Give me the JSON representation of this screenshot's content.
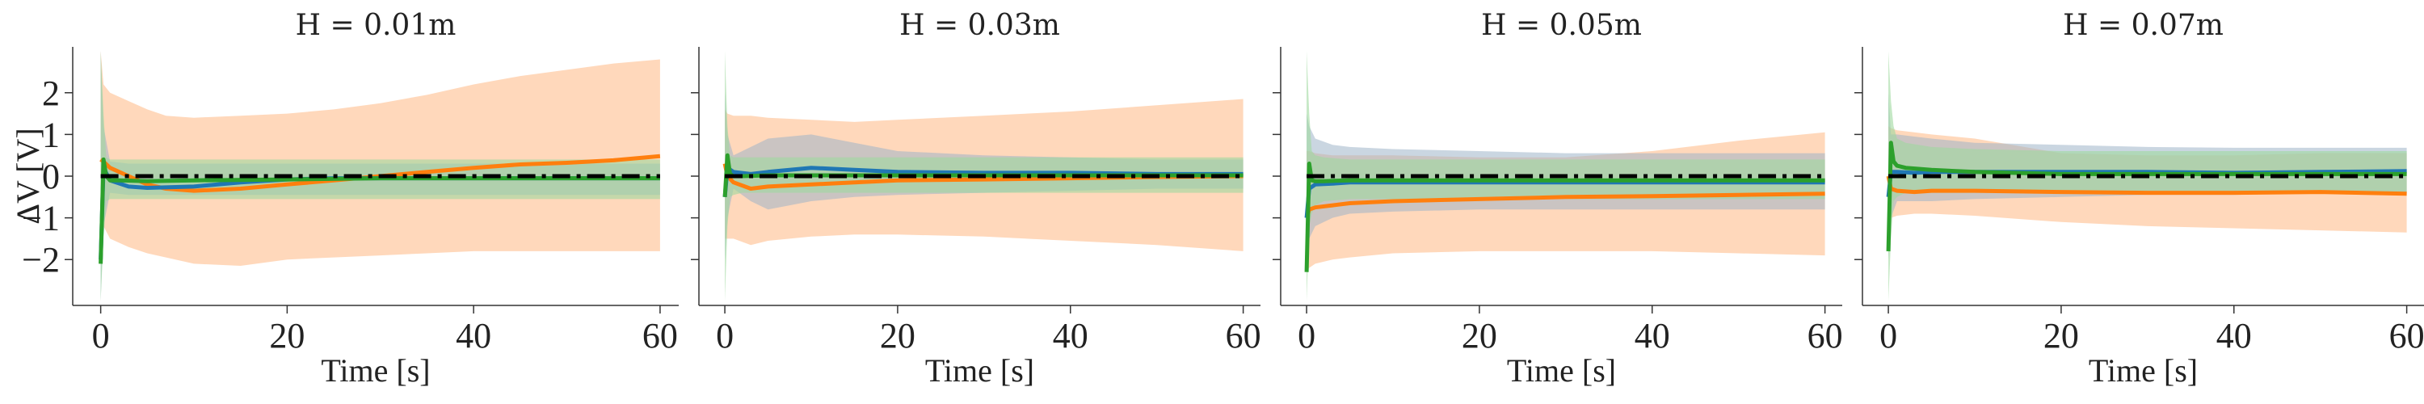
{
  "figure": {
    "y_axis_label": "ΔV [V]",
    "x_axis_label": "Time [s]"
  },
  "colors": {
    "blue": "#1f77b4",
    "orange": "#ff7f0e",
    "green": "#2ca02c",
    "reference": "#000000",
    "orange_band": "#ffcba4",
    "blue_band": "#9fb4c8",
    "green_band": "#9fd89f"
  },
  "chart_data": [
    {
      "type": "line",
      "title": "H = 0.01m",
      "xlabel": "Time [s]",
      "ylabel": "ΔV [V]",
      "xlim": [
        -3,
        62
      ],
      "ylim": [
        -3.1,
        3.1
      ],
      "xticks": [
        0,
        20,
        40,
        60
      ],
      "yticks": [
        -2,
        -1,
        0,
        1,
        2
      ],
      "reference_line": 0,
      "series": [
        {
          "color": "blue",
          "x": [
            0,
            0.3,
            1,
            3,
            5,
            10,
            15,
            20,
            25,
            30,
            40,
            50,
            60
          ],
          "y": [
            -2.0,
            0.2,
            -0.1,
            -0.25,
            -0.28,
            -0.25,
            -0.15,
            -0.08,
            -0.05,
            -0.05,
            -0.05,
            -0.05,
            -0.05
          ],
          "lower": [
            -3.0,
            -1.2,
            -0.4,
            -0.45,
            -0.45,
            -0.45,
            -0.45,
            -0.45,
            -0.45,
            -0.45,
            -0.45,
            -0.45,
            -0.45
          ],
          "upper": [
            3.0,
            1.2,
            0.35,
            0.3,
            0.3,
            0.3,
            0.3,
            0.3,
            0.3,
            0.3,
            0.3,
            0.3,
            0.3
          ]
        },
        {
          "color": "orange",
          "x": [
            0,
            0.3,
            1,
            3,
            5,
            7,
            10,
            15,
            20,
            25,
            30,
            35,
            40,
            45,
            50,
            55,
            60
          ],
          "y": [
            0.4,
            0.35,
            0.2,
            0.0,
            -0.2,
            -0.3,
            -0.35,
            -0.3,
            -0.2,
            -0.1,
            0.0,
            0.1,
            0.2,
            0.28,
            0.32,
            0.38,
            0.48
          ],
          "lower": [
            -0.5,
            -1.2,
            -1.5,
            -1.7,
            -1.85,
            -1.95,
            -2.1,
            -2.15,
            -2.0,
            -1.95,
            -1.9,
            -1.85,
            -1.8,
            -1.8,
            -1.8,
            -1.8,
            -1.8
          ],
          "upper": [
            3.0,
            2.2,
            2.0,
            1.8,
            1.6,
            1.45,
            1.4,
            1.45,
            1.5,
            1.6,
            1.75,
            1.95,
            2.2,
            2.4,
            2.55,
            2.7,
            2.8
          ]
        },
        {
          "color": "green",
          "x": [
            0,
            0.3,
            0.6,
            1,
            2,
            5,
            10,
            20,
            30,
            40,
            50,
            60
          ],
          "y": [
            -2.1,
            0.4,
            0.0,
            -0.1,
            -0.1,
            -0.12,
            -0.1,
            -0.08,
            -0.05,
            -0.05,
            -0.05,
            -0.05
          ],
          "lower": [
            -3.0,
            -1.5,
            -0.6,
            -0.55,
            -0.55,
            -0.55,
            -0.55,
            -0.55,
            -0.55,
            -0.55,
            -0.55,
            -0.55
          ],
          "upper": [
            3.0,
            1.5,
            0.45,
            0.4,
            0.4,
            0.4,
            0.4,
            0.4,
            0.4,
            0.4,
            0.4,
            0.4
          ]
        }
      ]
    },
    {
      "type": "line",
      "title": "H = 0.03m",
      "xlabel": "Time [s]",
      "ylabel": "",
      "xlim": [
        -3,
        62
      ],
      "ylim": [
        -3.1,
        3.1
      ],
      "xticks": [
        0,
        20,
        40,
        60
      ],
      "yticks": [
        -2,
        -1,
        0,
        1,
        2
      ],
      "reference_line": 0,
      "series": [
        {
          "color": "blue",
          "x": [
            0,
            0.3,
            1,
            3,
            5,
            10,
            15,
            20,
            30,
            40,
            50,
            60
          ],
          "y": [
            -0.5,
            0.2,
            0.1,
            0.05,
            0.1,
            0.2,
            0.15,
            0.1,
            0.08,
            0.08,
            0.05,
            0.05
          ],
          "lower": [
            -2.0,
            -1.0,
            -0.3,
            -0.6,
            -0.8,
            -0.6,
            -0.5,
            -0.45,
            -0.4,
            -0.35,
            -0.3,
            -0.3
          ],
          "upper": [
            2.0,
            1.0,
            0.5,
            0.7,
            0.9,
            1.0,
            0.8,
            0.6,
            0.5,
            0.45,
            0.4,
            0.4
          ]
        },
        {
          "color": "orange",
          "x": [
            0,
            0.3,
            1,
            3,
            5,
            10,
            15,
            20,
            30,
            40,
            50,
            60
          ],
          "y": [
            0.3,
            0.0,
            -0.15,
            -0.3,
            -0.25,
            -0.2,
            -0.15,
            -0.1,
            -0.08,
            -0.05,
            -0.02,
            0.0
          ],
          "lower": [
            -1.5,
            -1.5,
            -1.5,
            -1.65,
            -1.55,
            -1.45,
            -1.4,
            -1.4,
            -1.45,
            -1.55,
            -1.65,
            -1.8
          ],
          "upper": [
            1.6,
            1.5,
            1.45,
            1.45,
            1.4,
            1.35,
            1.3,
            1.35,
            1.45,
            1.55,
            1.7,
            1.85
          ]
        },
        {
          "color": "green",
          "x": [
            0,
            0.3,
            0.6,
            1,
            2,
            5,
            10,
            20,
            30,
            40,
            50,
            60
          ],
          "y": [
            -0.5,
            0.5,
            0.05,
            0.0,
            0.0,
            0.02,
            0.02,
            0.02,
            0.02,
            0.02,
            0.02,
            0.02
          ],
          "lower": [
            -3.0,
            -1.2,
            -0.5,
            -0.45,
            -0.4,
            -0.4,
            -0.4,
            -0.4,
            -0.4,
            -0.4,
            -0.4,
            -0.4
          ],
          "upper": [
            3.0,
            1.2,
            0.5,
            0.45,
            0.45,
            0.45,
            0.45,
            0.45,
            0.45,
            0.45,
            0.45,
            0.45
          ]
        }
      ]
    },
    {
      "type": "line",
      "title": "H = 0.05m",
      "xlabel": "Time [s]",
      "ylabel": "",
      "xlim": [
        -3,
        62
      ],
      "ylim": [
        -3.1,
        3.1
      ],
      "xticks": [
        0,
        20,
        40,
        60
      ],
      "yticks": [
        -2,
        -1,
        0,
        1,
        2
      ],
      "reference_line": 0,
      "series": [
        {
          "color": "blue",
          "x": [
            0,
            0.3,
            1,
            3,
            5,
            10,
            20,
            30,
            40,
            50,
            60
          ],
          "y": [
            -1.0,
            -0.3,
            -0.2,
            -0.18,
            -0.15,
            -0.15,
            -0.15,
            -0.15,
            -0.15,
            -0.15,
            -0.15
          ],
          "lower": [
            -2.0,
            -1.5,
            -1.2,
            -1.0,
            -0.9,
            -0.85,
            -0.8,
            -0.8,
            -0.8,
            -0.8,
            -0.8
          ],
          "upper": [
            1.5,
            1.2,
            0.9,
            0.75,
            0.7,
            0.65,
            0.6,
            0.55,
            0.55,
            0.55,
            0.55
          ]
        },
        {
          "color": "orange",
          "x": [
            0,
            0.3,
            1,
            3,
            5,
            10,
            20,
            30,
            40,
            50,
            60
          ],
          "y": [
            -1.0,
            -0.8,
            -0.75,
            -0.7,
            -0.65,
            -0.6,
            -0.55,
            -0.5,
            -0.48,
            -0.45,
            -0.42
          ],
          "lower": [
            -2.3,
            -2.2,
            -2.1,
            -2.0,
            -1.95,
            -1.85,
            -1.8,
            -1.8,
            -1.8,
            -1.85,
            -1.9
          ],
          "upper": [
            0.6,
            0.6,
            0.55,
            0.5,
            0.5,
            0.5,
            0.45,
            0.45,
            0.6,
            0.85,
            1.05
          ]
        },
        {
          "color": "green",
          "x": [
            0,
            0.3,
            0.6,
            1,
            2,
            5,
            10,
            20,
            30,
            40,
            50,
            60
          ],
          "y": [
            -2.3,
            0.3,
            -0.1,
            -0.12,
            -0.12,
            -0.1,
            -0.1,
            -0.1,
            -0.1,
            -0.1,
            -0.1,
            -0.1
          ],
          "lower": [
            -3.0,
            -1.2,
            -0.9,
            -0.7,
            -0.6,
            -0.55,
            -0.55,
            -0.55,
            -0.55,
            -0.55,
            -0.55,
            -0.55
          ],
          "upper": [
            3.0,
            1.5,
            0.6,
            0.5,
            0.45,
            0.4,
            0.4,
            0.4,
            0.4,
            0.4,
            0.4,
            0.4
          ]
        }
      ]
    },
    {
      "type": "line",
      "title": "H = 0.07m",
      "xlabel": "Time [s]",
      "ylabel": "",
      "xlim": [
        -3,
        62
      ],
      "ylim": [
        -3.1,
        3.1
      ],
      "xticks": [
        0,
        20,
        40,
        60
      ],
      "yticks": [
        -2,
        -1,
        0,
        1,
        2
      ],
      "reference_line": 0,
      "series": [
        {
          "color": "blue",
          "x": [
            0,
            0.3,
            1,
            3,
            5,
            10,
            20,
            30,
            40,
            50,
            60
          ],
          "y": [
            -0.5,
            0.1,
            0.1,
            0.08,
            0.1,
            0.1,
            0.1,
            0.1,
            0.08,
            0.1,
            0.12
          ],
          "lower": [
            -2.0,
            -1.0,
            -0.6,
            -0.6,
            -0.6,
            -0.55,
            -0.5,
            -0.45,
            -0.45,
            -0.4,
            -0.4
          ],
          "upper": [
            2.0,
            1.0,
            1.0,
            0.95,
            0.9,
            0.8,
            0.75,
            0.7,
            0.68,
            0.68,
            0.68
          ]
        },
        {
          "color": "orange",
          "x": [
            0,
            0.3,
            1,
            3,
            5,
            10,
            20,
            30,
            40,
            50,
            60
          ],
          "y": [
            0.0,
            -0.3,
            -0.35,
            -0.38,
            -0.35,
            -0.35,
            -0.38,
            -0.4,
            -0.4,
            -0.38,
            -0.42
          ],
          "lower": [
            -1.0,
            -1.0,
            -0.95,
            -0.9,
            -0.9,
            -0.95,
            -1.1,
            -1.2,
            -1.25,
            -1.3,
            -1.35
          ],
          "upper": [
            1.2,
            1.15,
            1.1,
            1.05,
            1.0,
            0.9,
            0.55,
            0.5,
            0.5,
            0.55,
            0.55
          ]
        },
        {
          "color": "green",
          "x": [
            0,
            0.3,
            0.6,
            1,
            2,
            5,
            10,
            20,
            30,
            40,
            50,
            60
          ],
          "y": [
            -1.8,
            0.8,
            0.35,
            0.25,
            0.2,
            0.15,
            0.1,
            0.05,
            0.05,
            0.05,
            0.05,
            0.05
          ],
          "lower": [
            -3.0,
            -1.5,
            -0.6,
            -0.5,
            -0.4,
            -0.4,
            -0.4,
            -0.4,
            -0.4,
            -0.4,
            -0.4,
            -0.4
          ],
          "upper": [
            3.0,
            1.8,
            1.2,
            0.9,
            0.8,
            0.7,
            0.65,
            0.6,
            0.6,
            0.6,
            0.6,
            0.6
          ]
        }
      ]
    }
  ]
}
